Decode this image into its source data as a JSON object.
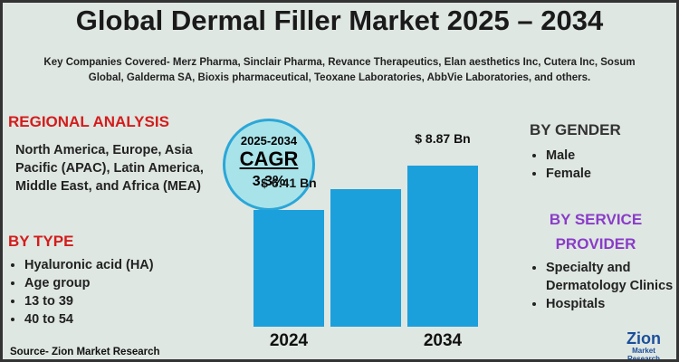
{
  "chart_data": {
    "type": "bar",
    "title": "Global Dermal Filler Market 2025 – 2034",
    "categories": [
      "2024",
      null,
      "2034"
    ],
    "values": [
      6.41,
      7.57,
      8.87
    ],
    "value_labels": [
      "$ 6.41 Bn",
      null,
      "$ 8.87 Bn"
    ],
    "color": "#1ca0dc"
  },
  "subtitle": "Key Companies Covered- Merz Pharma, Sinclair Pharma, Revance Therapeutics, Elan aesthetics Inc, Cutera Inc, Sosum Global, Galderma SA, Bioxis pharmaceutical, Teoxane Laboratories, AbbVie Laboratories, and others.",
  "cagr": {
    "period": "2025-2034",
    "label": "CAGR",
    "value": "3.3%"
  },
  "regional": {
    "heading": "REGIONAL ANALYSIS",
    "text": "North America, Europe, Asia Pacific (APAC), Latin America, Middle East, and Africa (MEA)"
  },
  "by_type": {
    "heading": "BY TYPE",
    "items": [
      "Hyaluronic acid (HA)",
      "Age group",
      "13 to 39",
      "40 to 54"
    ]
  },
  "by_gender": {
    "heading": "BY GENDER",
    "items": [
      "Male",
      "Female"
    ]
  },
  "by_service": {
    "heading": "BY SERVICE PROVIDER",
    "items": [
      "Specialty and Dermatology Clinics",
      "Hospitals"
    ]
  },
  "source": "Source- Zion Market Research",
  "logo": {
    "name": "Zion",
    "sub": "Market Research"
  }
}
